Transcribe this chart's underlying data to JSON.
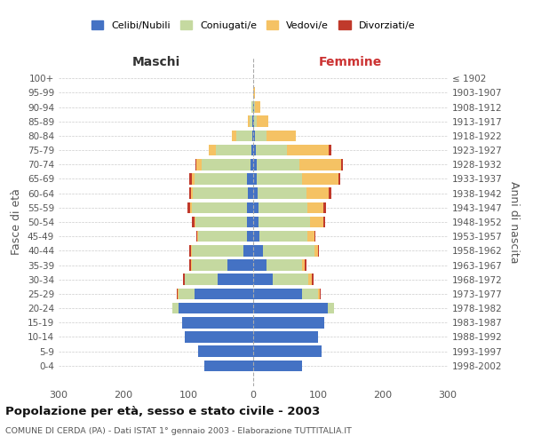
{
  "age_groups": [
    "0-4",
    "5-9",
    "10-14",
    "15-19",
    "20-24",
    "25-29",
    "30-34",
    "35-39",
    "40-44",
    "45-49",
    "50-54",
    "55-59",
    "60-64",
    "65-69",
    "70-74",
    "75-79",
    "80-84",
    "85-89",
    "90-94",
    "95-99",
    "100+"
  ],
  "birth_years": [
    "1998-2002",
    "1993-1997",
    "1988-1992",
    "1983-1987",
    "1978-1982",
    "1973-1977",
    "1968-1972",
    "1963-1967",
    "1958-1962",
    "1953-1957",
    "1948-1952",
    "1943-1947",
    "1938-1942",
    "1933-1937",
    "1928-1932",
    "1923-1927",
    "1918-1922",
    "1913-1917",
    "1908-1912",
    "1903-1907",
    "≤ 1902"
  ],
  "maschi": {
    "celibi": [
      75,
      85,
      105,
      110,
      115,
      90,
      55,
      40,
      15,
      10,
      9,
      10,
      8,
      10,
      4,
      3,
      1,
      1,
      0,
      0,
      0
    ],
    "coniugati": [
      0,
      0,
      0,
      0,
      10,
      25,
      50,
      55,
      80,
      75,
      80,
      85,
      85,
      80,
      75,
      55,
      25,
      5,
      3,
      0,
      0
    ],
    "vedovi": [
      0,
      0,
      0,
      0,
      0,
      1,
      1,
      1,
      1,
      1,
      2,
      2,
      3,
      5,
      8,
      10,
      7,
      2,
      0,
      0,
      0
    ],
    "divorziati": [
      0,
      0,
      0,
      0,
      0,
      2,
      2,
      2,
      2,
      2,
      4,
      4,
      3,
      3,
      2,
      0,
      0,
      0,
      0,
      0,
      0
    ]
  },
  "femmine": {
    "nubili": [
      75,
      105,
      100,
      110,
      115,
      75,
      30,
      20,
      15,
      9,
      8,
      8,
      7,
      6,
      6,
      4,
      3,
      2,
      1,
      0,
      0
    ],
    "coniugate": [
      0,
      0,
      0,
      0,
      10,
      25,
      55,
      55,
      80,
      75,
      80,
      75,
      75,
      70,
      65,
      48,
      18,
      3,
      2,
      0,
      0
    ],
    "vedove": [
      0,
      0,
      0,
      0,
      0,
      3,
      5,
      5,
      5,
      10,
      20,
      25,
      35,
      55,
      65,
      65,
      45,
      18,
      8,
      3,
      0
    ],
    "divorziate": [
      0,
      0,
      0,
      0,
      0,
      1,
      3,
      2,
      2,
      2,
      3,
      4,
      3,
      3,
      3,
      3,
      0,
      0,
      0,
      0,
      0
    ]
  },
  "colors": {
    "celibi": "#4472c4",
    "coniugati": "#c5d9a0",
    "vedovi": "#f5c264",
    "divorziati": "#c0392b"
  },
  "title": "Popolazione per età, sesso e stato civile - 2003",
  "subtitle": "COMUNE DI CERDA (PA) - Dati ISTAT 1° gennaio 2003 - Elaborazione TUTTITALIA.IT",
  "xlabel_left": "Maschi",
  "xlabel_right": "Femmine",
  "ylabel": "Fasce di età",
  "ylabel_right": "Anni di nascita",
  "xlim": 300,
  "legend_labels": [
    "Celibi/Nubili",
    "Coniugati/e",
    "Vedovi/e",
    "Divorziati/e"
  ],
  "background_color": "#ffffff"
}
